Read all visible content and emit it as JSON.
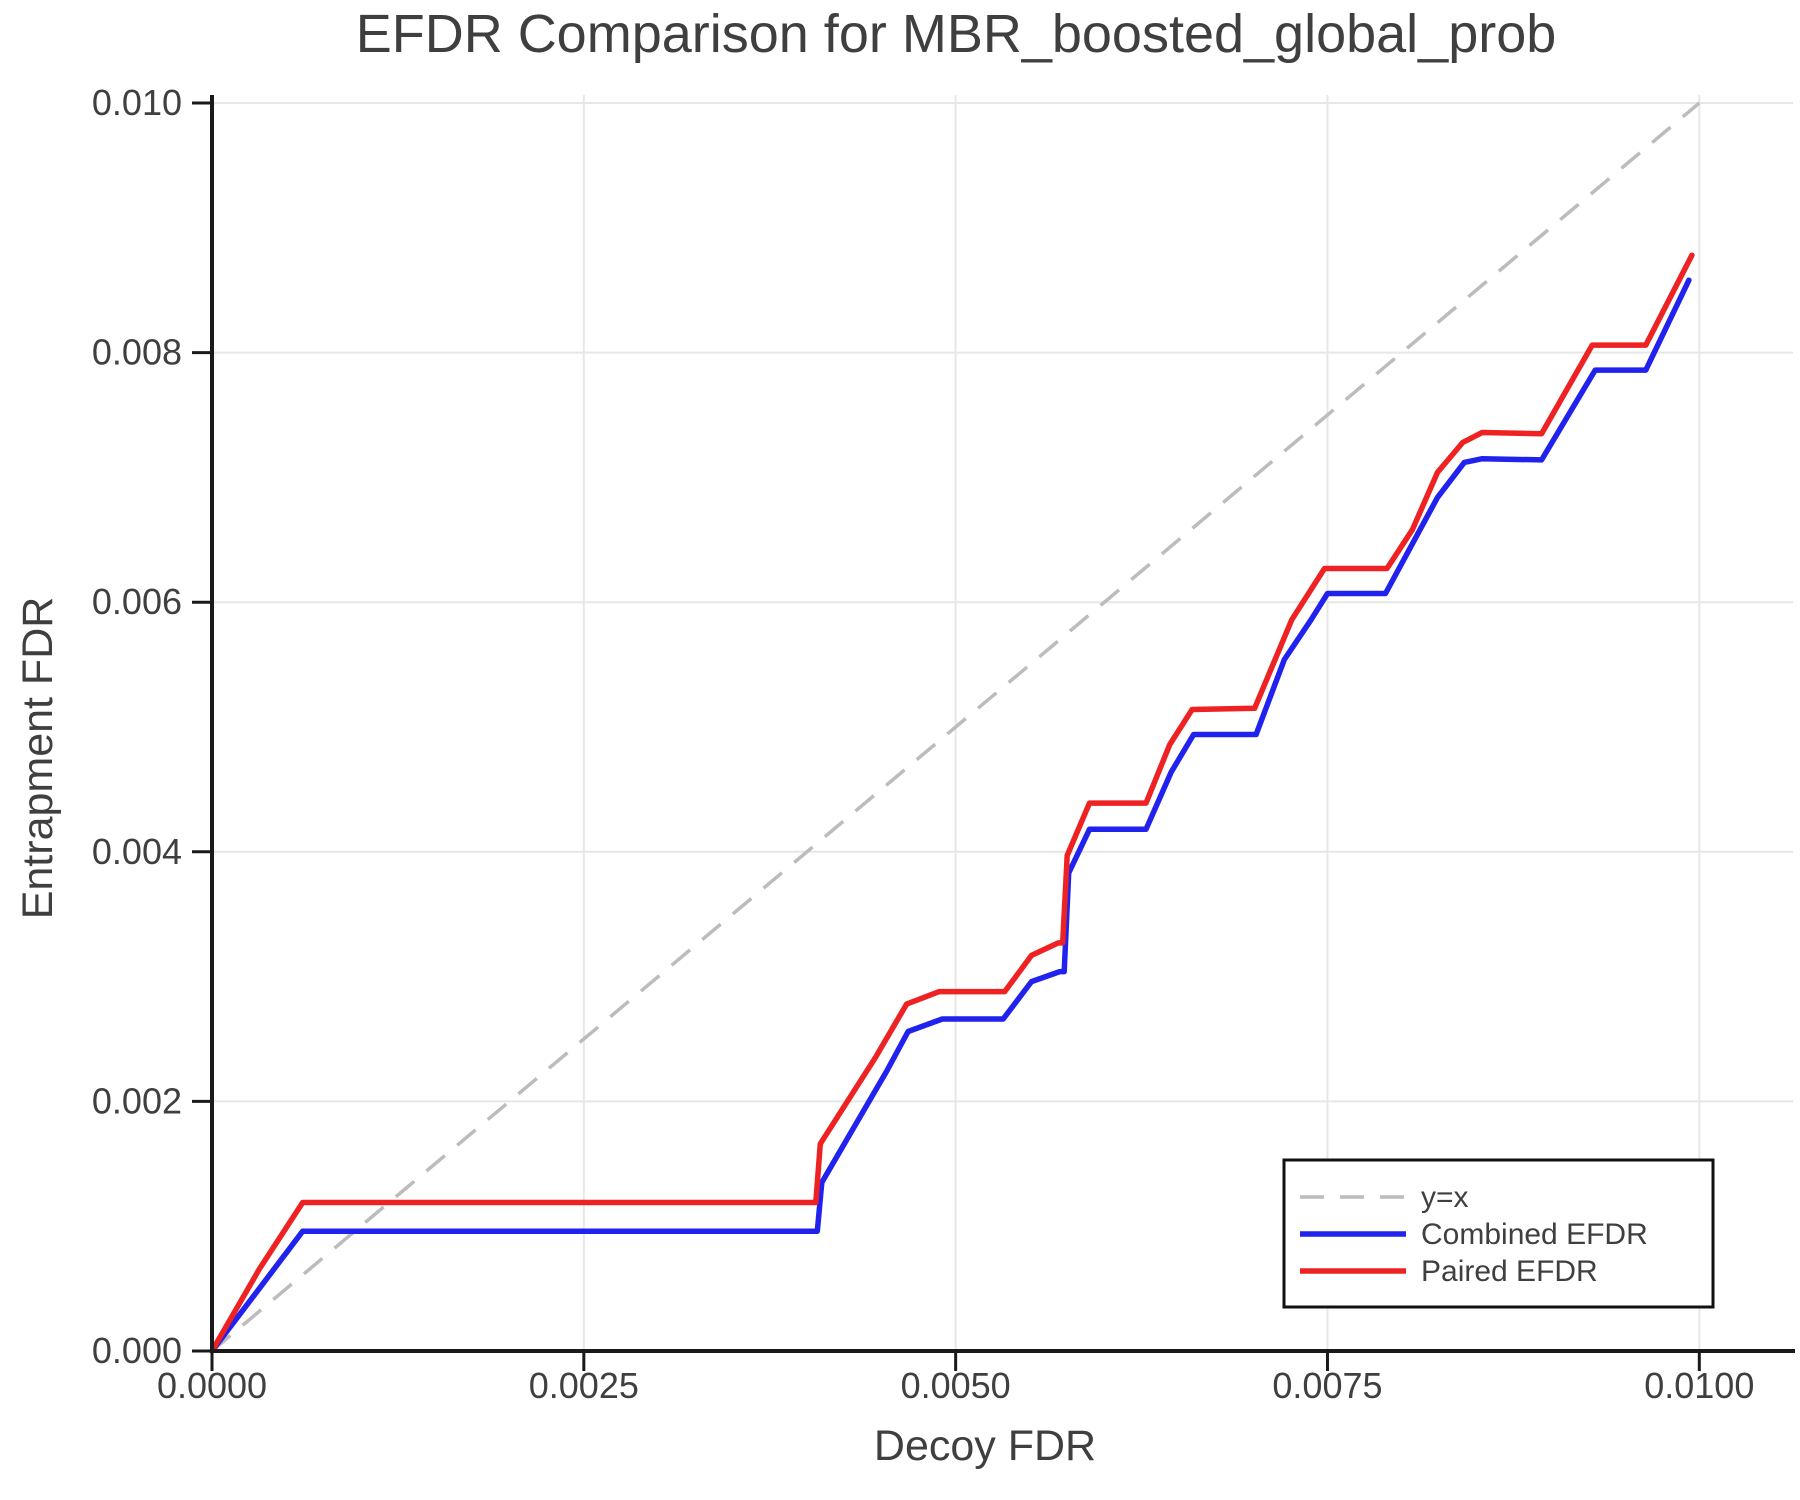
{
  "chart_data": {
    "type": "line",
    "title": "EFDR Comparison for MBR_boosted_global_prob",
    "xlabel": "Decoy FDR",
    "ylabel": "Entrapment FDR",
    "xlim": [
      0.0,
      0.01063
    ],
    "ylim": [
      0.0,
      0.010064
    ],
    "grid": true,
    "legend_position": "lower right",
    "xticks": {
      "values": [
        0.0,
        0.0025,
        0.005,
        0.0075,
        0.01
      ],
      "labels": [
        "0.0000",
        "0.0025",
        "0.0050",
        "0.0075",
        "0.0100"
      ]
    },
    "yticks": {
      "values": [
        0.0,
        0.002,
        0.004,
        0.006,
        0.008,
        0.01
      ],
      "labels": [
        "0.000",
        "0.002",
        "0.004",
        "0.006",
        "0.008",
        "0.010"
      ]
    },
    "reference_line": {
      "name": "y=x",
      "style": "dashed",
      "color": "#bcbcbc",
      "points": [
        [
          0.0,
          0.0
        ],
        [
          0.01,
          0.01
        ]
      ]
    },
    "series": [
      {
        "name": "Combined EFDR",
        "color": "#2222ee",
        "points": [
          [
            0.0,
            0.0
          ],
          [
            0.00061,
            0.00096
          ],
          [
            0.00407,
            0.00096
          ],
          [
            0.0041,
            0.00135
          ],
          [
            0.00454,
            0.00225
          ],
          [
            0.00468,
            0.00256
          ],
          [
            0.00491,
            0.00266
          ],
          [
            0.00532,
            0.00266
          ],
          [
            0.00551,
            0.00296
          ],
          [
            0.0057,
            0.00304
          ],
          [
            0.00573,
            0.00304
          ],
          [
            0.00576,
            0.00383
          ],
          [
            0.0059,
            0.00418
          ],
          [
            0.00628,
            0.00418
          ],
          [
            0.00645,
            0.00464
          ],
          [
            0.0066,
            0.00494
          ],
          [
            0.00702,
            0.00494
          ],
          [
            0.00721,
            0.00554
          ],
          [
            0.00739,
            0.00586
          ],
          [
            0.0075,
            0.00607
          ],
          [
            0.00789,
            0.00607
          ],
          [
            0.00824,
            0.00684
          ],
          [
            0.00842,
            0.00712
          ],
          [
            0.00854,
            0.00715
          ],
          [
            0.00894,
            0.00714
          ],
          [
            0.0093,
            0.00786
          ],
          [
            0.00964,
            0.00786
          ],
          [
            0.00993,
            0.00858
          ]
        ]
      },
      {
        "name": "Paired EFDR",
        "color": "#ee2222",
        "points": [
          [
            0.0,
            0.0
          ],
          [
            0.00032,
            0.00066
          ],
          [
            0.00061,
            0.00119
          ],
          [
            0.00406,
            0.00119
          ],
          [
            0.00409,
            0.00166
          ],
          [
            0.00446,
            0.00235
          ],
          [
            0.00467,
            0.00278
          ],
          [
            0.00489,
            0.00288
          ],
          [
            0.00533,
            0.00288
          ],
          [
            0.00551,
            0.00317
          ],
          [
            0.00569,
            0.00327
          ],
          [
            0.00572,
            0.00327
          ],
          [
            0.00575,
            0.00397
          ],
          [
            0.0059,
            0.00439
          ],
          [
            0.00628,
            0.00439
          ],
          [
            0.00644,
            0.00486
          ],
          [
            0.00659,
            0.00514
          ],
          [
            0.00701,
            0.00515
          ],
          [
            0.00726,
            0.00586
          ],
          [
            0.00748,
            0.00627
          ],
          [
            0.0079,
            0.00627
          ],
          [
            0.00807,
            0.00658
          ],
          [
            0.00824,
            0.00704
          ],
          [
            0.00841,
            0.00728
          ],
          [
            0.00854,
            0.00736
          ],
          [
            0.00894,
            0.00735
          ],
          [
            0.00928,
            0.00806
          ],
          [
            0.00964,
            0.00806
          ],
          [
            0.00995,
            0.00878
          ]
        ]
      }
    ],
    "legend": [
      "y=x",
      "Combined EFDR",
      "Paired EFDR"
    ]
  },
  "colors": {
    "text": "#3f3f3f",
    "grid": "#e7e7e7",
    "spine": "#1a1a1a",
    "legend_border": "#111111",
    "background": "#ffffff"
  }
}
